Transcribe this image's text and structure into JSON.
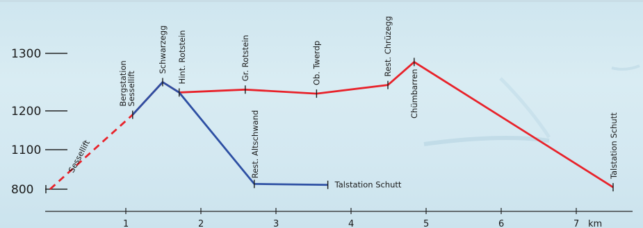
{
  "chart_data": {
    "type": "line",
    "xlabel": "",
    "ylabel": "",
    "x_unit": "km",
    "xlim": [
      0,
      7.8
    ],
    "x_ticks": [
      1,
      2,
      3,
      4,
      5,
      6,
      7
    ],
    "y_ticks": [
      800,
      1100,
      1200,
      1300
    ],
    "grid": false,
    "legend": "none",
    "series": [
      {
        "name": "Sessellift",
        "color": "#e8222a",
        "style": "dashed",
        "points": [
          {
            "x": 0.0,
            "y": 800
          },
          {
            "x": 1.1,
            "y": 1190
          }
        ]
      },
      {
        "name": "",
        "color": "#e8222a",
        "style": "solid",
        "points": [
          {
            "x": 1.1,
            "y": 1190
          },
          {
            "x": 1.5,
            "y": 1250
          },
          {
            "x": 1.72,
            "y": 1232
          },
          {
            "x": 2.6,
            "y": 1237
          },
          {
            "x": 3.55,
            "y": 1230
          },
          {
            "x": 4.5,
            "y": 1245
          },
          {
            "x": 4.85,
            "y": 1285
          },
          {
            "x": 7.5,
            "y": 815
          }
        ]
      },
      {
        "name": "",
        "color": "#2d4fa3",
        "style": "solid",
        "points": [
          {
            "x": 1.1,
            "y": 1190
          },
          {
            "x": 1.5,
            "y": 1250
          },
          {
            "x": 1.72,
            "y": 1232
          },
          {
            "x": 2.72,
            "y": 840
          },
          {
            "x": 3.7,
            "y": 833
          }
        ]
      }
    ],
    "stations": [
      {
        "label": "Bergstation Sessellift",
        "x": 1.1,
        "y": 1190
      },
      {
        "label": "Schwarzegg",
        "x": 1.5,
        "y": 1250
      },
      {
        "label": "Hint. Rotstein",
        "x": 1.72,
        "y": 1232
      },
      {
        "label": "Gr. Rotstein",
        "x": 2.6,
        "y": 1237
      },
      {
        "label": "Ob. Twerdp",
        "x": 3.55,
        "y": 1230
      },
      {
        "label": "Rest. Chrüzegg",
        "x": 4.5,
        "y": 1245
      },
      {
        "label": "Chümbarren",
        "x": 4.85,
        "y": 1285
      },
      {
        "label": "Talstation Schutt",
        "x": 7.5,
        "y": 815
      },
      {
        "label": "Rest. Altschwand",
        "x": 2.72,
        "y": 840
      },
      {
        "label": "Talstation Schutt",
        "x": 3.7,
        "y": 833
      }
    ],
    "annotations": [
      {
        "text": "Sessellift"
      }
    ]
  }
}
